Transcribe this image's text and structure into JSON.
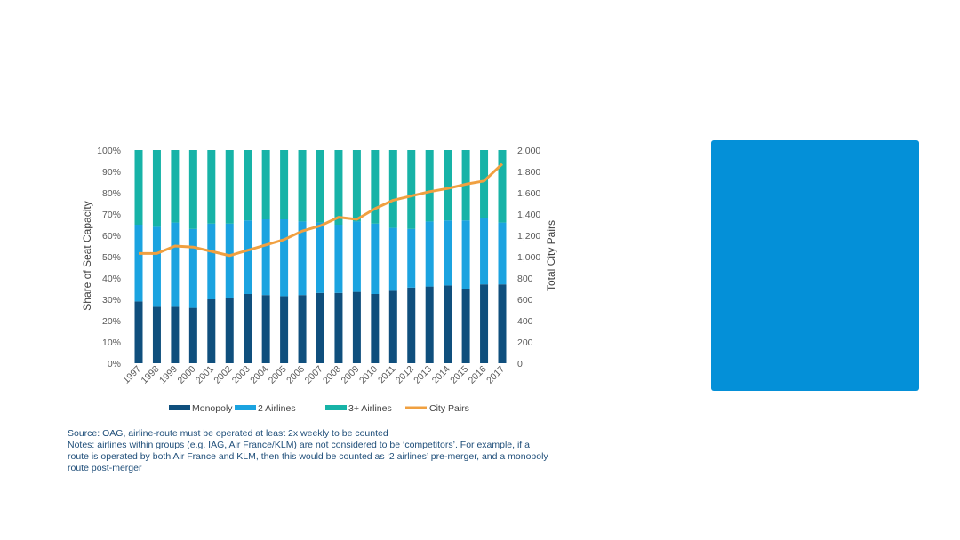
{
  "colors": {
    "monopoly": "#0f4f7d",
    "two_airlines": "#1ba3e0",
    "three_plus": "#17b3a7",
    "city_pairs": "#f0a040",
    "panel": "#0490d8",
    "notes_text": "#1f4e79"
  },
  "chart_data": {
    "type": "bar",
    "stacked": true,
    "categories": [
      "1997",
      "1998",
      "1999",
      "2000",
      "2001",
      "2002",
      "2003",
      "2004",
      "2005",
      "2006",
      "2007",
      "2008",
      "2009",
      "2010",
      "2011",
      "2012",
      "2013",
      "2014",
      "2015",
      "2016",
      "2017"
    ],
    "series": [
      {
        "name": "Monopoly",
        "key": "monopoly",
        "values": [
          29,
          26.5,
          26.5,
          26,
          30,
          30.5,
          32.5,
          32,
          31.5,
          32,
          33,
          33,
          33.5,
          32.5,
          34,
          35.5,
          36,
          36.5,
          35,
          37,
          37
        ]
      },
      {
        "name": "2 Airlines",
        "key": "two_airlines",
        "values": [
          36,
          37.5,
          39.5,
          37,
          35.5,
          35,
          34.5,
          35.5,
          36,
          34.5,
          33,
          32,
          33,
          33,
          29.5,
          27.5,
          30.5,
          30.5,
          32,
          31,
          29
        ]
      },
      {
        "name": "3+ Airlines",
        "key": "three_plus",
        "values": [
          35,
          36,
          34,
          37,
          34.5,
          34.5,
          33,
          32.5,
          32.5,
          33.5,
          34,
          35,
          33.5,
          34.5,
          36.5,
          37,
          33.5,
          33,
          33,
          32,
          34
        ]
      }
    ],
    "line": {
      "name": "City Pairs",
      "key": "city_pairs",
      "values": [
        1030,
        1030,
        1100,
        1090,
        1050,
        1010,
        1060,
        1110,
        1160,
        1240,
        1290,
        1370,
        1350,
        1450,
        1530,
        1570,
        1610,
        1640,
        1680,
        1710,
        1870
      ]
    },
    "ylabel": "Share of Seat Capacity",
    "y2label": "Total City Pairs",
    "ylim": [
      0,
      100
    ],
    "y2lim": [
      0,
      2000
    ],
    "yticks": [
      "0%",
      "10%",
      "20%",
      "30%",
      "40%",
      "50%",
      "60%",
      "70%",
      "80%",
      "90%",
      "100%"
    ],
    "y2ticks": [
      "0",
      "200",
      "400",
      "600",
      "800",
      "1,000",
      "1,200",
      "1,400",
      "1,600",
      "1,800",
      "2,000"
    ],
    "legend": [
      "Monopoly",
      "2 Airlines",
      "3+ Airlines",
      "City Pairs"
    ],
    "legend_position": "bottom",
    "grid": false
  },
  "notes": {
    "source": "Source: OAG, airline-route must be operated at least 2x weekly to be counted",
    "line1": "Notes: airlines within groups (e.g. IAG, Air France/KLM) are not considered to be ‘competitors’. For example, if a",
    "line2": "route is operated by both Air France and KLM, then this would be counted as ‘2 airlines’ pre-merger, and a monopoly",
    "line3": "route post-merger"
  }
}
